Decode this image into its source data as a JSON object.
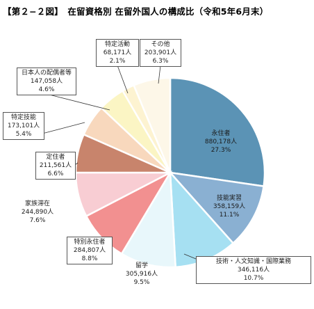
{
  "title": "【第２−２図】　在留資格別 在留外国人の構成比（令和5年6月末）",
  "chart_data": {
    "type": "pie",
    "title": "【第２−２図】　在留資格別 在留外国人の構成比（令和5年6月末）",
    "slices": [
      {
        "label": "永住者",
        "count": "880,178人",
        "percent": "27.3%",
        "value": 27.3,
        "color": "#5b93b5"
      },
      {
        "label": "技能実習",
        "count": "358,159人",
        "percent": "11.1%",
        "value": 11.1,
        "color": "#8ab0d2"
      },
      {
        "label": "技術・人文知識・国際業務",
        "count": "346,116人",
        "percent": "10.7%",
        "value": 10.7,
        "color": "#a6e0f2"
      },
      {
        "label": "留学",
        "count": "305,916人",
        "percent": "9.5%",
        "value": 9.5,
        "color": "#e8f7fb"
      },
      {
        "label": "特別永住者",
        "count": "284,807人",
        "percent": "8.8%",
        "value": 8.8,
        "color": "#f29090"
      },
      {
        "label": "家族滞在",
        "count": "244,890人",
        "percent": "7.6%",
        "value": 7.6,
        "color": "#f8cdd3"
      },
      {
        "label": "定住者",
        "count": "211,561人",
        "percent": "6.6%",
        "value": 6.6,
        "color": "#c8846c"
      },
      {
        "label": "特定技能",
        "count": "173,101人",
        "percent": "5.4%",
        "value": 5.4,
        "color": "#f8d8bd"
      },
      {
        "label": "日本人の配偶者等",
        "count": "147,058人",
        "percent": "4.6%",
        "value": 4.6,
        "color": "#fbf5c4"
      },
      {
        "label": "特定活動",
        "count": "68,171人",
        "percent": "2.1%",
        "value": 2.1,
        "color": "#fdf3d1"
      },
      {
        "label": "その他",
        "count": "203,901人",
        "percent": "6.3%",
        "value": 6.3,
        "color": "#fdf7e8"
      }
    ]
  }
}
